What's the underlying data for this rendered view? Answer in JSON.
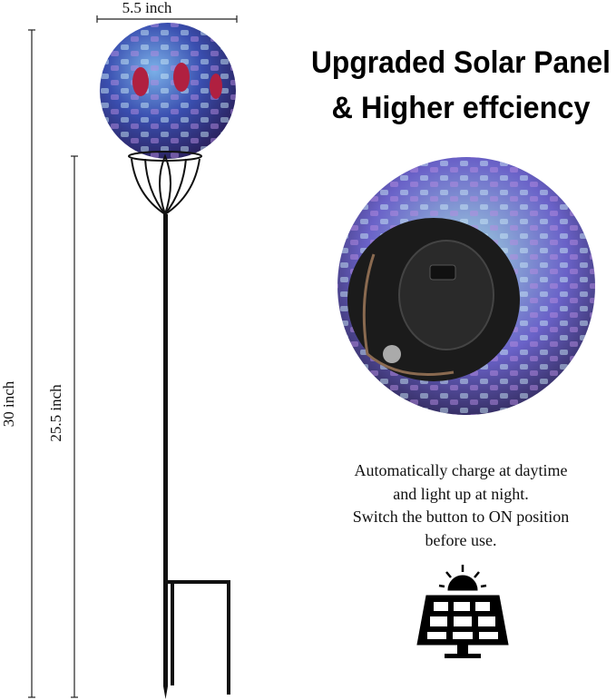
{
  "dimensions": {
    "width": "5.5 inch",
    "height": "30 inch",
    "stake_height": "25.5 inch"
  },
  "heading": {
    "line1": "Upgraded Solar Panel",
    "line2": "& Higher effciency"
  },
  "description": [
    "Automatically charge at daytime",
    "and light up at night.",
    "Switch the button to ON position",
    "before use."
  ]
}
